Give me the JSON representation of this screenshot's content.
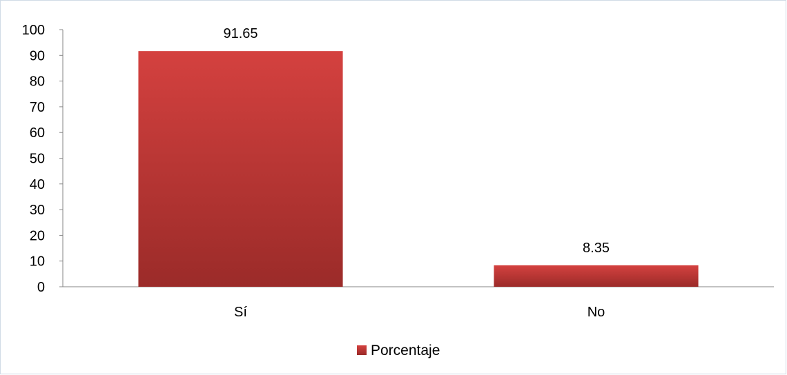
{
  "chart_data": {
    "type": "bar",
    "categories": [
      "Sí",
      "No"
    ],
    "series": [
      {
        "name": "Porcentaje",
        "values": [
          91.65,
          8.35
        ],
        "data_labels": [
          "91.65",
          "8.35"
        ]
      }
    ],
    "title": "",
    "xlabel": "",
    "ylabel": "",
    "ylim": [
      0,
      100
    ],
    "yticks": [
      "0",
      "10",
      "20",
      "30",
      "40",
      "50",
      "60",
      "70",
      "80",
      "90",
      "100"
    ],
    "grid": false,
    "legend_position": "bottom",
    "colors": {
      "bar_top": "#d4413f",
      "bar_bottom": "#9b2b29",
      "axis": "#868686"
    }
  }
}
